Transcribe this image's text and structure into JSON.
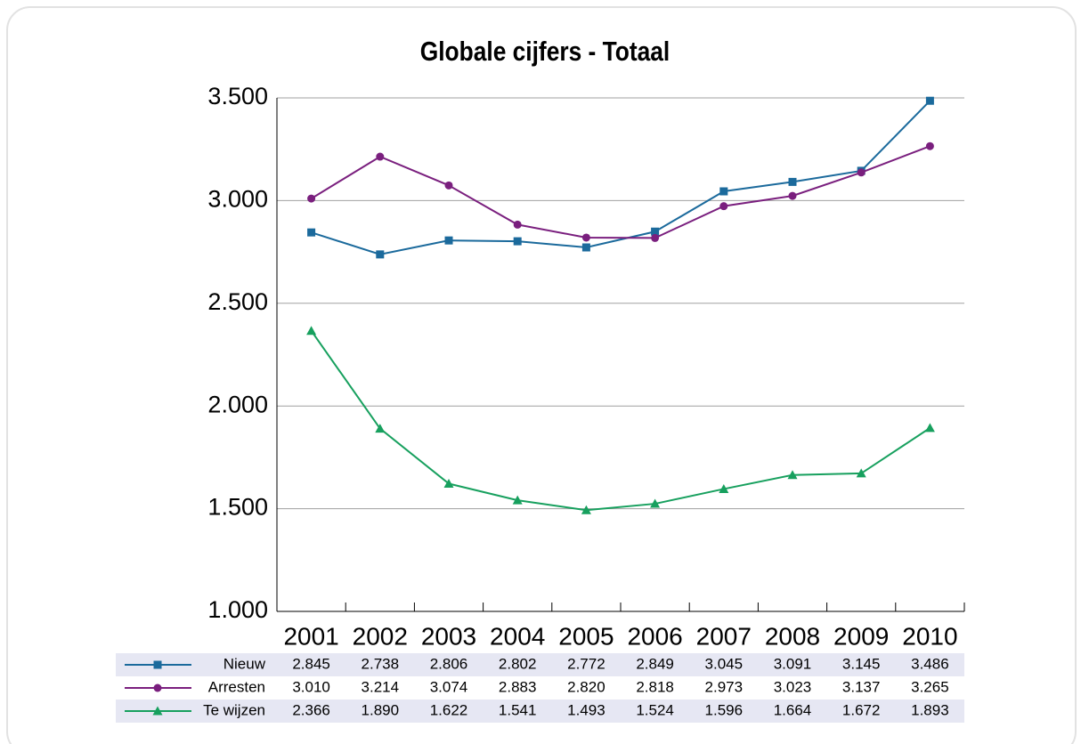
{
  "chart_data": {
    "type": "line",
    "title": "Globale cijfers - Totaal",
    "categories": [
      "2001",
      "2002",
      "2003",
      "2004",
      "2005",
      "2006",
      "2007",
      "2008",
      "2009",
      "2010"
    ],
    "series": [
      {
        "name": "Nieuw",
        "color": "#1b6a9c",
        "marker": "square",
        "values": [
          2845,
          2738,
          2806,
          2802,
          2772,
          2849,
          3045,
          3091,
          3145,
          3486
        ],
        "value_labels": [
          "2.845",
          "2.738",
          "2.806",
          "2.802",
          "2.772",
          "2.849",
          "3.045",
          "3.091",
          "3.145",
          "3.486"
        ]
      },
      {
        "name": "Arresten",
        "color": "#7a1f7e",
        "marker": "circle",
        "values": [
          3010,
          3214,
          3074,
          2883,
          2820,
          2818,
          2973,
          3023,
          3137,
          3265
        ],
        "value_labels": [
          "3.010",
          "3.214",
          "3.074",
          "2.883",
          "2.820",
          "2.818",
          "2.973",
          "3.023",
          "3.137",
          "3.265"
        ]
      },
      {
        "name": "Te wijzen",
        "color": "#17a05e",
        "marker": "triangle",
        "values": [
          2366,
          1890,
          1622,
          1541,
          1493,
          1524,
          1596,
          1664,
          1672,
          1893
        ],
        "value_labels": [
          "2.366",
          "1.890",
          "1.622",
          "1.541",
          "1.493",
          "1.524",
          "1.596",
          "1.664",
          "1.672",
          "1.893"
        ]
      }
    ],
    "ylim": [
      1000,
      3500
    ],
    "yticks": [
      {
        "value": 1000,
        "label": "1.000"
      },
      {
        "value": 1500,
        "label": "1.500"
      },
      {
        "value": 2000,
        "label": "2.000"
      },
      {
        "value": 2500,
        "label": "2.500"
      },
      {
        "value": 3000,
        "label": "3.000"
      },
      {
        "value": 3500,
        "label": "3.500"
      }
    ],
    "grid": true
  }
}
